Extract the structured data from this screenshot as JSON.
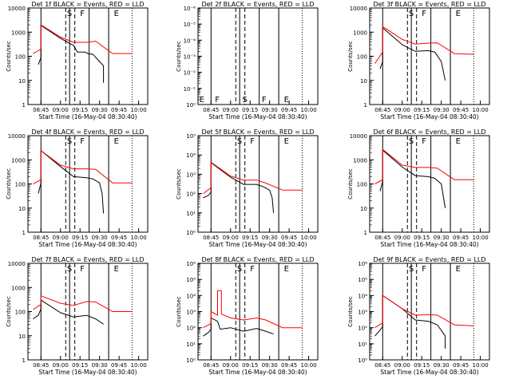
{
  "chart_data": [
    {
      "type": "line",
      "title": "Det 1f BLACK = Events, RED = LLD",
      "xlabel": "Start Time (16-May-04 08:30:40)",
      "ylabel": "Counts/sec",
      "yscale": "log",
      "ylim": [
        1,
        10000
      ],
      "yticks": [
        "1",
        "10",
        "100",
        "1000",
        "10000"
      ],
      "xticks": [
        "08:45",
        "09:00",
        "09:15",
        "09:30",
        "09:45",
        "10:00"
      ],
      "markers": [
        "S",
        "F",
        "E"
      ],
      "series": [
        {
          "name": "Events",
          "color": "#000000",
          "values": [
            [
              -2,
              45
            ],
            [
              0,
              90
            ],
            [
              0,
              1900
            ],
            [
              15,
              550
            ],
            [
              25,
              280
            ],
            [
              28,
              150
            ],
            [
              34,
              150
            ],
            [
              36,
              130
            ],
            [
              40,
              120
            ],
            [
              42,
              90
            ],
            [
              48,
              40
            ],
            [
              48,
              8
            ]
          ]
        },
        {
          "name": "LLD",
          "color": "#ff0000",
          "values": [
            [
              -6,
              130
            ],
            [
              -2,
              170
            ],
            [
              0,
              200
            ],
            [
              0,
              2000
            ],
            [
              15,
              620
            ],
            [
              25,
              380
            ],
            [
              35,
              380
            ],
            [
              42,
              420
            ],
            [
              55,
              130
            ],
            [
              70,
              130
            ]
          ]
        }
      ]
    },
    {
      "type": "line",
      "title": "Det 2f BLACK = Events, RED = LLD",
      "xlabel": "Start Time (16-May-04 08:30:40)",
      "ylabel": "Counts/sec",
      "yscale": "log",
      "ylim": [
        1,
        1000000
      ],
      "yticks": [
        "10⁰",
        "10⁻¹",
        "10⁻²",
        "10⁻³",
        "10⁻⁴",
        "10⁻⁵",
        "10⁻⁶"
      ],
      "xticks": [
        "08:45",
        "09:00",
        "09:15",
        "09:30",
        "09:45",
        "10:00"
      ],
      "markers": [
        "E",
        "F",
        "S",
        "F",
        "E"
      ],
      "series": []
    },
    {
      "type": "line",
      "title": "Det 3f BLACK = Events, RED = LLD",
      "xlabel": "Start Time (16-May-04 08:30:40)",
      "ylabel": "Counts/sec",
      "yscale": "log",
      "ylim": [
        1,
        10000
      ],
      "yticks": [
        "1",
        "10",
        "100",
        "1000",
        "10000"
      ],
      "xticks": [
        "08:45",
        "09:00",
        "09:15",
        "09:30",
        "09:45",
        "10:00"
      ],
      "markers": [
        "S",
        "F",
        "E"
      ],
      "series": [
        {
          "name": "Events",
          "color": "#000000",
          "values": [
            [
              -2,
              30
            ],
            [
              0,
              60
            ],
            [
              0,
              1500
            ],
            [
              15,
              300
            ],
            [
              25,
              160
            ],
            [
              35,
              170
            ],
            [
              40,
              150
            ],
            [
              45,
              60
            ],
            [
              48,
              10
            ]
          ]
        },
        {
          "name": "LLD",
          "color": "#ff0000",
          "values": [
            [
              -6,
              50
            ],
            [
              0,
              150
            ],
            [
              0,
              1700
            ],
            [
              15,
              500
            ],
            [
              25,
              320
            ],
            [
              35,
              350
            ],
            [
              42,
              360
            ],
            [
              55,
              130
            ],
            [
              70,
              120
            ]
          ]
        }
      ]
    },
    {
      "type": "line",
      "title": "Det 4f BLACK = Events, RED = LLD",
      "xlabel": "Start Time (16-May-04 08:30:40)",
      "ylabel": "Counts/sec",
      "yscale": "log",
      "ylim": [
        1,
        10000
      ],
      "yticks": [
        "1",
        "10",
        "100",
        "1000",
        "10000"
      ],
      "xticks": [
        "08:45",
        "09:00",
        "09:15",
        "09:30",
        "09:45",
        "10:00"
      ],
      "markers": [
        "S",
        "F",
        "E"
      ],
      "series": [
        {
          "name": "Events",
          "color": "#000000",
          "values": [
            [
              -2,
              40
            ],
            [
              0,
              110
            ],
            [
              0,
              2400
            ],
            [
              15,
              520
            ],
            [
              25,
              200
            ],
            [
              35,
              180
            ],
            [
              40,
              160
            ],
            [
              45,
              110
            ],
            [
              47,
              40
            ],
            [
              48,
              6
            ]
          ]
        },
        {
          "name": "LLD",
          "color": "#ff0000",
          "values": [
            [
              -6,
              100
            ],
            [
              0,
              150
            ],
            [
              0,
              2400
            ],
            [
              15,
              600
            ],
            [
              25,
              420
            ],
            [
              35,
              420
            ],
            [
              42,
              400
            ],
            [
              55,
              110
            ],
            [
              70,
              110
            ]
          ]
        }
      ]
    },
    {
      "type": "line",
      "title": "Det 5f BLACK = Events, RED = LLD",
      "xlabel": "Start Time (16-May-04 08:30:40)",
      "ylabel": "Counts/sec",
      "yscale": "log",
      "ylim": [
        1,
        100000
      ],
      "yticks": [
        "10⁰",
        "10¹",
        "10²",
        "10³",
        "10⁴",
        "10⁵"
      ],
      "xticks": [
        "08:45",
        "09:00",
        "09:15",
        "09:30",
        "09:45",
        "10:00"
      ],
      "markers": [
        "S",
        "F",
        "E"
      ],
      "series": [
        {
          "name": "Events",
          "color": "#000000",
          "values": [
            [
              -6,
              60
            ],
            [
              -2,
              80
            ],
            [
              0,
              120
            ],
            [
              0,
              4000
            ],
            [
              15,
              700
            ],
            [
              25,
              300
            ],
            [
              35,
              300
            ],
            [
              40,
              230
            ],
            [
              45,
              150
            ],
            [
              47,
              60
            ],
            [
              48,
              10
            ]
          ]
        },
        {
          "name": "LLD",
          "color": "#ff0000",
          "values": [
            [
              -6,
              100
            ],
            [
              0,
              200
            ],
            [
              0,
              4200
            ],
            [
              15,
              800
            ],
            [
              25,
              500
            ],
            [
              35,
              500
            ],
            [
              42,
              350
            ],
            [
              55,
              150
            ],
            [
              70,
              150
            ]
          ]
        }
      ]
    },
    {
      "type": "line",
      "title": "Det 6f BLACK = Events, RED = LLD",
      "xlabel": "Start Time (16-May-04 08:30:40)",
      "ylabel": "Counts/sec",
      "yscale": "log",
      "ylim": [
        1,
        10000
      ],
      "yticks": [
        "1",
        "10",
        "100",
        "1000",
        "10000"
      ],
      "xticks": [
        "08:45",
        "09:00",
        "09:15",
        "09:30",
        "09:45",
        "10:00"
      ],
      "markers": [
        "S",
        "F",
        "E"
      ],
      "series": [
        {
          "name": "Events",
          "color": "#000000",
          "values": [
            [
              -2,
              50
            ],
            [
              0,
              130
            ],
            [
              0,
              2500
            ],
            [
              15,
              500
            ],
            [
              25,
              220
            ],
            [
              35,
              200
            ],
            [
              40,
              170
            ],
            [
              45,
              100
            ],
            [
              48,
              10
            ]
          ]
        },
        {
          "name": "LLD",
          "color": "#ff0000",
          "values": [
            [
              -6,
              100
            ],
            [
              0,
              150
            ],
            [
              0,
              2700
            ],
            [
              15,
              600
            ],
            [
              25,
              480
            ],
            [
              35,
              480
            ],
            [
              42,
              450
            ],
            [
              55,
              150
            ],
            [
              70,
              150
            ]
          ]
        }
      ]
    },
    {
      "type": "line",
      "title": "Det 7f BLACK = Events, RED = LLD",
      "xlabel": "Start Time (16-May-04 08:30:40)",
      "ylabel": "Counts/sec",
      "yscale": "log",
      "ylim": [
        1,
        10000
      ],
      "yticks": [
        "1",
        "10",
        "100",
        "1000",
        "10000"
      ],
      "xticks": [
        "08:45",
        "09:00",
        "09:15",
        "09:30",
        "09:45",
        "10:00"
      ],
      "markers": [
        "S",
        "F",
        "E"
      ],
      "series": [
        {
          "name": "Events",
          "color": "#000000",
          "values": [
            [
              -6,
              50
            ],
            [
              -2,
              70
            ],
            [
              0,
              130
            ],
            [
              0,
              300
            ],
            [
              15,
              90
            ],
            [
              25,
              60
            ],
            [
              35,
              70
            ],
            [
              42,
              50
            ],
            [
              48,
              30
            ]
          ]
        },
        {
          "name": "LLD",
          "color": "#ff0000",
          "values": [
            [
              -6,
              120
            ],
            [
              0,
              200
            ],
            [
              0,
              450
            ],
            [
              15,
              220
            ],
            [
              25,
              180
            ],
            [
              35,
              260
            ],
            [
              42,
              250
            ],
            [
              55,
              100
            ],
            [
              70,
              100
            ]
          ]
        }
      ]
    },
    {
      "type": "line",
      "title": "Det 8f BLACK = Events, RED = LLD",
      "xlabel": "Start Time (16-May-04 08:30:40)",
      "ylabel": "Counts/sec",
      "yscale": "log",
      "ylim": [
        1,
        1000000
      ],
      "yticks": [
        "10⁰",
        "10¹",
        "10²",
        "10³",
        "10⁴",
        "10⁵",
        "10⁶"
      ],
      "xticks": [
        "08:45",
        "09:00",
        "09:15",
        "09:30",
        "09:45",
        "10:00"
      ],
      "markers": [
        "S",
        "F",
        "E"
      ],
      "series": [
        {
          "name": "Events",
          "color": "#000000",
          "values": [
            [
              -6,
              30
            ],
            [
              -2,
              50
            ],
            [
              0,
              80
            ],
            [
              0,
              400
            ],
            [
              5,
              250
            ],
            [
              7,
              80
            ],
            [
              15,
              100
            ],
            [
              25,
              60
            ],
            [
              35,
              90
            ],
            [
              42,
              60
            ],
            [
              48,
              40
            ]
          ]
        },
        {
          "name": "LLD",
          "color": "#ff0000",
          "values": [
            [
              -6,
              100
            ],
            [
              0,
              180
            ],
            [
              0,
              1000
            ],
            [
              5,
              600
            ],
            [
              5,
              20000
            ],
            [
              8,
              20000
            ],
            [
              8,
              700
            ],
            [
              15,
              400
            ],
            [
              25,
              300
            ],
            [
              35,
              400
            ],
            [
              42,
              300
            ],
            [
              55,
              100
            ],
            [
              70,
              100
            ]
          ]
        }
      ]
    },
    {
      "type": "line",
      "title": "Det 9f BLACK = Events, RED = LLD",
      "xlabel": "Start Time (16-May-04 08:30:40)",
      "ylabel": "Counts/sec",
      "yscale": "log",
      "ylim": [
        1,
        1000000
      ],
      "yticks": [
        "10⁰",
        "10¹",
        "10²",
        "10³",
        "10⁴",
        "10⁵",
        "10⁶"
      ],
      "xticks": [
        "08:45",
        "09:00",
        "09:15",
        "09:30",
        "09:45",
        "10:00"
      ],
      "markers": [
        "S",
        "F",
        "E"
      ],
      "series": [
        {
          "name": "Events",
          "color": "#000000",
          "values": [
            [
              -6,
              30
            ],
            [
              -2,
              70
            ],
            [
              0,
              120
            ],
            [
              0,
              10000
            ],
            [
              15,
              1500
            ],
            [
              25,
              300
            ],
            [
              35,
              250
            ],
            [
              42,
              150
            ],
            [
              48,
              30
            ],
            [
              48,
              5
            ]
          ]
        },
        {
          "name": "LLD",
          "color": "#ff0000",
          "values": [
            [
              -6,
              100
            ],
            [
              0,
              200
            ],
            [
              0,
              10000
            ],
            [
              15,
              1500
            ],
            [
              25,
              600
            ],
            [
              35,
              650
            ],
            [
              42,
              600
            ],
            [
              55,
              150
            ],
            [
              70,
              130
            ]
          ]
        }
      ]
    }
  ]
}
